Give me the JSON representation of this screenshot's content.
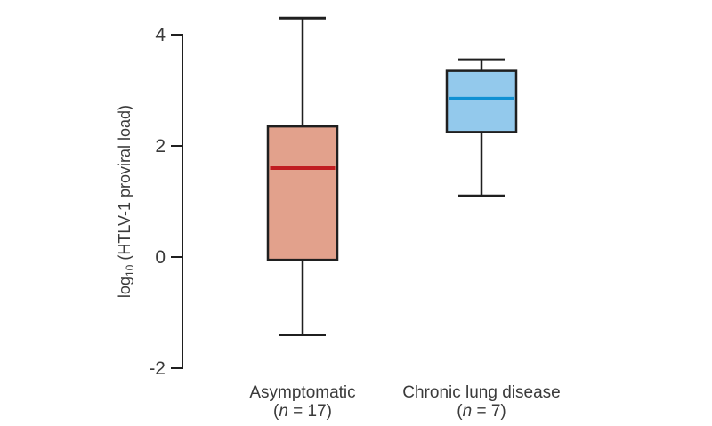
{
  "chart_data": {
    "type": "boxplot",
    "title": "",
    "grid": false,
    "axis": {
      "title_prefix": "log",
      "title_sub": "10",
      "title_suffix": " (HTLV-1 proviral load)",
      "tick_values": [
        4,
        2,
        0,
        -2
      ],
      "tick_labels": [
        "4",
        "2",
        "0",
        "-2"
      ],
      "ylim": [
        -2,
        4.35
      ]
    },
    "stroke_color": "#1f1f1f",
    "text_color": "#3a3a3a",
    "background_color": "#ffffff",
    "groups": [
      {
        "label": "Asymptomatic",
        "n": 17,
        "sublabel_pre": "(",
        "sublabel_italic": "n",
        "sublabel_post": " = 17)",
        "whisker_low": -1.4,
        "q1": -0.05,
        "median": 1.6,
        "q3": 2.35,
        "whisker_high": 4.3,
        "box_fill": "#e2a18c",
        "median_color": "#c01d21"
      },
      {
        "label": "Chronic lung disease",
        "n": 7,
        "sublabel_pre": "(",
        "sublabel_italic": "n",
        "sublabel_post": " = 7)",
        "whisker_low": 1.1,
        "q1": 2.25,
        "median": 2.85,
        "q3": 3.35,
        "whisker_high": 3.55,
        "box_fill": "#93c9ec",
        "median_color": "#0f90d3"
      }
    ]
  }
}
